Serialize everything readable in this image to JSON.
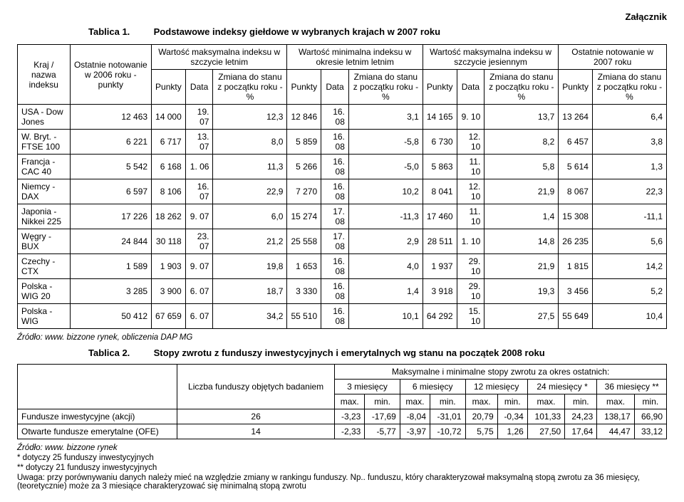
{
  "attachment_label": "Załącznik",
  "t1": {
    "tab_label": "Tablica 1.",
    "title": "Podstawowe indeksy giełdowe w wybranych krajach w 2007 roku",
    "headers": {
      "country": "Kraj /\nnazwa indeksu",
      "last2006": "Ostatnie notowanie w 2006 roku - punkty",
      "max_summer": "Wartość maksymalna indeksu w szczycie letnim",
      "min_summer": "Wartość minimalna indeksu w okresie letnim letnim",
      "max_autumn": "Wartość maksymalna indeksu w szczycie jesiennym",
      "last2007": "Ostatnie notowanie w 2007 roku",
      "pts": "Punkty",
      "date": "Data",
      "delta": "Zmiana do stanu z początku roku - %"
    },
    "rows": [
      {
        "c": "USA - Dow Jones",
        "v": [
          "12 463",
          "14 000",
          "19. 07",
          "12,3",
          "12 846",
          "16. 08",
          "3,1",
          "14 165",
          "9. 10",
          "13,7",
          "13 264",
          "6,4"
        ]
      },
      {
        "c": "W. Bryt. - FTSE 100",
        "v": [
          "6 221",
          "6 717",
          "13. 07",
          "8,0",
          "5 859",
          "16. 08",
          "-5,8",
          "6 730",
          "12. 10",
          "8,2",
          "6 457",
          "3,8"
        ]
      },
      {
        "c": "Francja - CAC 40",
        "v": [
          "5 542",
          "6 168",
          "1. 06",
          "11,3",
          "5 266",
          "16. 08",
          "-5,0",
          "5 863",
          "11. 10",
          "5,8",
          "5 614",
          "1,3"
        ]
      },
      {
        "c": "Niemcy - DAX",
        "v": [
          "6 597",
          "8 106",
          "16. 07",
          "22,9",
          "7 270",
          "16. 08",
          "10,2",
          "8 041",
          "12. 10",
          "21,9",
          "8 067",
          "22,3"
        ]
      },
      {
        "c": "Japonia - Nikkei 225",
        "v": [
          "17 226",
          "18 262",
          "9. 07",
          "6,0",
          "15 274",
          "17. 08",
          "-11,3",
          "17 460",
          "11. 10",
          "1,4",
          "15 308",
          "-11,1"
        ]
      },
      {
        "c": "Węgry - BUX",
        "v": [
          "24 844",
          "30 118",
          "23. 07",
          "21,2",
          "25 558",
          "17. 08",
          "2,9",
          "28 511",
          "1. 10",
          "14,8",
          "26 235",
          "5,6"
        ]
      },
      {
        "c": "Czechy - CTX",
        "v": [
          "1 589",
          "1 903",
          "9. 07",
          "19,8",
          "1 653",
          "16. 08",
          "4,0",
          "1 937",
          "29. 10",
          "21,9",
          "1 815",
          "14,2"
        ]
      },
      {
        "c": "Polska - WIG 20",
        "v": [
          "3 285",
          "3 900",
          "6. 07",
          "18,7",
          "3 330",
          "16. 08",
          "1,4",
          "3 918",
          "29. 10",
          "19,3",
          "3 456",
          "5,2"
        ]
      },
      {
        "c": "Polska - WIG",
        "v": [
          "50 412",
          "67 659",
          "6. 07",
          "34,2",
          "55 510",
          "16. 08",
          "10,1",
          "64 292",
          "15. 10",
          "27,5",
          "55 649",
          "10,4"
        ]
      }
    ],
    "source": "Źródło: www. bizzone rynek, obliczenia DAP MG"
  },
  "t2": {
    "tab_label": "Tablica 2.",
    "title": "Stopy zwrotu z funduszy inwestycyjnych i emerytalnych wg stanu na początek 2008 roku",
    "headers": {
      "count": "Liczba funduszy objętych badaniem",
      "top": "Maksymalne i minimalne stopy zwrotu za okres ostatnich:",
      "p3": "3 miesięcy",
      "p6": "6 miesięcy",
      "p12": "12 miesięcy",
      "p24": "24 miesięcy *",
      "p36": "36 miesięcy **",
      "max": "max.",
      "min": "min."
    },
    "rows": [
      {
        "c": "Fundusze inwestycyjne (akcji)",
        "n": "26",
        "v": [
          "-3,23",
          "-17,69",
          "-8,04",
          "-31,01",
          "20,79",
          "-0,34",
          "101,33",
          "24,23",
          "138,17",
          "66,90"
        ]
      },
      {
        "c": "Otwarte fundusze emerytalne (OFE)",
        "n": "14",
        "v": [
          "-2,33",
          "-5,77",
          "-3,97",
          "-10,72",
          "5,75",
          "1,26",
          "27,50",
          "17,64",
          "44,47",
          "33,12"
        ]
      }
    ],
    "source": "Źródło: www. bizzone rynek",
    "foot1": "*  dotyczy 25 funduszy inwestycyjnych",
    "foot2": "** dotyczy 21 funduszy inwestycyjnych",
    "note": "Uwaga: przy porównywaniu danych należy mieć na względzie zmiany w rankingu funduszy. Np.. funduszu, który charakteryzował maksymalną stopą zwrotu za 36 miesięcy, (teoretycznie) może za 3 miesiące charakteryzować się minimalną stopą zwrotu"
  }
}
